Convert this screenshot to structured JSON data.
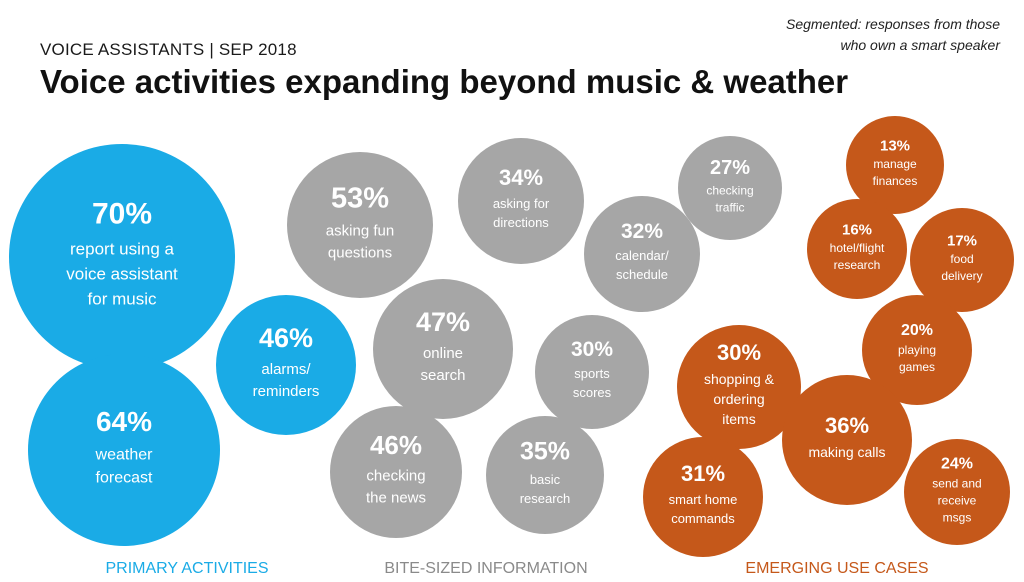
{
  "header": {
    "kicker": "VOICE ASSISTANTS | SEP 2018",
    "title": "Voice activities expanding beyond music & weather",
    "note_line1": "Segmented: responses from those",
    "note_line2": "who own a smart speaker"
  },
  "colors": {
    "primary": "#1aabe6",
    "bite": "#a6a6a6",
    "emerging": "#c5581a"
  },
  "groups": [
    {
      "key": "primary",
      "label": "PRIMARY ACTIVITIES",
      "color": "#1aabe6"
    },
    {
      "key": "bite",
      "label": "BITE-SIZED INFORMATION",
      "color": "#8a8a8a"
    },
    {
      "key": "emerging",
      "label": "EMERGING USE CASES",
      "color": "#c5581a"
    }
  ],
  "chart_data": {
    "type": "bubble",
    "unit": "%",
    "items": [
      {
        "group": "primary",
        "value": 70,
        "label": [
          "report using a",
          "voice assistant",
          "for music"
        ]
      },
      {
        "group": "primary",
        "value": 64,
        "label": [
          "weather",
          "forecast"
        ]
      },
      {
        "group": "primary",
        "value": 46,
        "label": [
          "alarms/",
          "reminders"
        ]
      },
      {
        "group": "bite",
        "value": 53,
        "label": [
          "asking fun",
          "questions"
        ]
      },
      {
        "group": "bite",
        "value": 34,
        "label": [
          "asking for",
          "directions"
        ]
      },
      {
        "group": "bite",
        "value": 27,
        "label": [
          "checking",
          "traffic"
        ]
      },
      {
        "group": "bite",
        "value": 32,
        "label": [
          "calendar/",
          "schedule"
        ]
      },
      {
        "group": "bite",
        "value": 47,
        "label": [
          "online",
          "search"
        ]
      },
      {
        "group": "bite",
        "value": 30,
        "label": [
          "sports",
          "scores"
        ]
      },
      {
        "group": "bite",
        "value": 46,
        "label": [
          "checking",
          "the news"
        ]
      },
      {
        "group": "bite",
        "value": 35,
        "label": [
          "basic",
          "research"
        ]
      },
      {
        "group": "emerging",
        "value": 13,
        "label": [
          "manage",
          "finances"
        ]
      },
      {
        "group": "emerging",
        "value": 16,
        "label": [
          "hotel/flight",
          "research"
        ]
      },
      {
        "group": "emerging",
        "value": 17,
        "label": [
          "food",
          "delivery"
        ]
      },
      {
        "group": "emerging",
        "value": 20,
        "label": [
          "playing",
          "games"
        ]
      },
      {
        "group": "emerging",
        "value": 30,
        "label": [
          "shopping &",
          "ordering",
          "items"
        ]
      },
      {
        "group": "emerging",
        "value": 36,
        "label": [
          "making calls"
        ]
      },
      {
        "group": "emerging",
        "value": 31,
        "label": [
          "smart home",
          "commands"
        ]
      },
      {
        "group": "emerging",
        "value": 24,
        "label": [
          "send and",
          "receive",
          "msgs"
        ]
      }
    ]
  }
}
